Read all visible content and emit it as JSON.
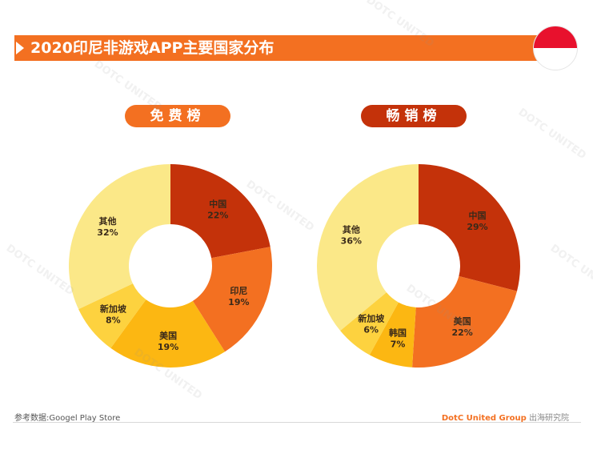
{
  "title": "2020印尼非游戏APP主要国家分布",
  "source": "参考数据:Googel Play Store",
  "brand": {
    "name": "DotC United Group",
    "suffix": " 出海研究院"
  },
  "watermark": "DOTC UNITED",
  "colors": {
    "accent": "#f37021",
    "dark_accent": "#c4320a"
  },
  "chart_data": [
    {
      "type": "pie",
      "title": "免费榜",
      "donut": true,
      "categories": [
        "中国",
        "印尼",
        "美国",
        "新加坡",
        "其他"
      ],
      "values": [
        22,
        19,
        19,
        8,
        32
      ],
      "labels": [
        "22%",
        "19%",
        "19%",
        "8%",
        "32%"
      ],
      "colors": [
        "#c4320a",
        "#f37021",
        "#fcb712",
        "#fdd23f",
        "#fbe888"
      ]
    },
    {
      "type": "pie",
      "title": "畅销榜",
      "donut": true,
      "categories": [
        "中国",
        "美国",
        "韩国",
        "新加坡",
        "其他"
      ],
      "values": [
        29,
        22,
        7,
        6,
        36
      ],
      "labels": [
        "29%",
        "22%",
        "7%",
        "6%",
        "36%"
      ],
      "colors": [
        "#c4320a",
        "#f37021",
        "#fcb712",
        "#fdd23f",
        "#fbe888"
      ]
    }
  ]
}
